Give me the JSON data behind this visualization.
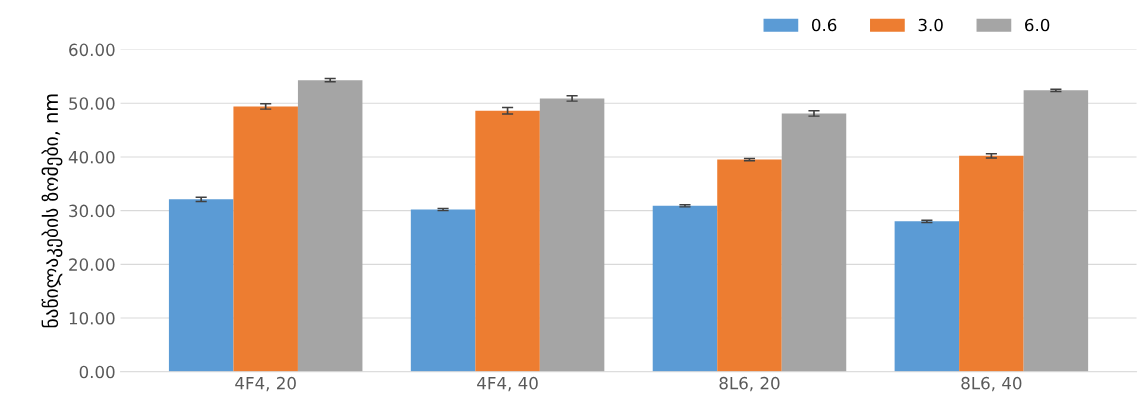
{
  "chart_data": {
    "type": "bar",
    "ylabel": "ნაწილაკების ზომები, nm",
    "categories": [
      "4F4, 20",
      "4F4, 40",
      "8L6, 20",
      "8L6, 40"
    ],
    "series": [
      {
        "name": "0.6",
        "color": "#5b9bd5",
        "values": [
          32.1,
          30.2,
          30.9,
          28.0
        ],
        "errors": [
          0.4,
          0.2,
          0.2,
          0.2
        ]
      },
      {
        "name": "3.0",
        "color": "#ed7d31",
        "values": [
          49.4,
          48.6,
          39.5,
          40.2
        ],
        "errors": [
          0.5,
          0.6,
          0.2,
          0.4
        ]
      },
      {
        "name": "6.0",
        "color": "#a5a5a5",
        "values": [
          54.3,
          50.9,
          48.1,
          52.4
        ],
        "errors": [
          0.3,
          0.5,
          0.5,
          0.2
        ]
      }
    ],
    "ylim": [
      0,
      60
    ],
    "yticks": [
      {
        "value": 0,
        "label": "0.00"
      },
      {
        "value": 10,
        "label": "10.00"
      },
      {
        "value": 20,
        "label": "20.00"
      },
      {
        "value": 30,
        "label": "30.00"
      },
      {
        "value": 40,
        "label": "40.00"
      },
      {
        "value": 50,
        "label": "50.00"
      },
      {
        "value": 60,
        "label": "60.00"
      }
    ],
    "grid": "y",
    "legend": "top right"
  }
}
